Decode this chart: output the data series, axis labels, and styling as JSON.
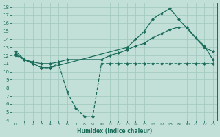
{
  "bg_color": "#c2e0d8",
  "grid_color": "#9fc8be",
  "line_color": "#1a6b5a",
  "xlabel": "Humidex (Indice chaleur)",
  "xlim": [
    -0.5,
    23.5
  ],
  "ylim": [
    4,
    18.5
  ],
  "xticks": [
    0,
    1,
    2,
    3,
    4,
    5,
    6,
    7,
    8,
    9,
    10,
    11,
    12,
    13,
    14,
    15,
    16,
    17,
    18,
    19,
    20,
    21,
    22,
    23
  ],
  "yticks": [
    4,
    5,
    6,
    7,
    8,
    9,
    10,
    11,
    12,
    13,
    14,
    15,
    16,
    17,
    18
  ],
  "curve_top_x": [
    0,
    1,
    2,
    3,
    4,
    13,
    14,
    15,
    16,
    17,
    18,
    19,
    22,
    23
  ],
  "curve_top_y": [
    12.5,
    11.5,
    11.0,
    10.5,
    10.5,
    13.0,
    14.0,
    15.0,
    16.5,
    17.2,
    17.8,
    16.5,
    13.0,
    12.5
  ],
  "curve_mid_x": [
    0,
    1,
    2,
    3,
    4,
    5,
    6,
    10,
    11,
    12,
    13,
    14,
    15,
    16,
    17,
    18,
    19,
    20,
    21,
    22,
    23
  ],
  "curve_mid_y": [
    12.2,
    11.5,
    11.2,
    11.0,
    11.0,
    11.2,
    11.5,
    11.5,
    12.0,
    12.3,
    12.7,
    13.2,
    13.5,
    14.2,
    14.7,
    15.2,
    15.5,
    15.5,
    14.2,
    13.2,
    11.5
  ],
  "curve_dip_x": [
    0,
    1,
    2,
    3,
    4,
    5,
    6,
    7,
    8,
    9,
    10,
    11,
    12,
    13,
    14,
    15,
    16,
    17,
    18,
    19,
    20,
    21,
    22,
    23
  ],
  "curve_dip_y": [
    12.0,
    11.5,
    11.0,
    10.5,
    10.5,
    11.0,
    7.5,
    5.5,
    4.5,
    4.5,
    11.0,
    11.0,
    11.0,
    11.0,
    11.0,
    11.0,
    11.0,
    11.0,
    11.0,
    11.0,
    11.0,
    11.0,
    11.0,
    11.0
  ]
}
